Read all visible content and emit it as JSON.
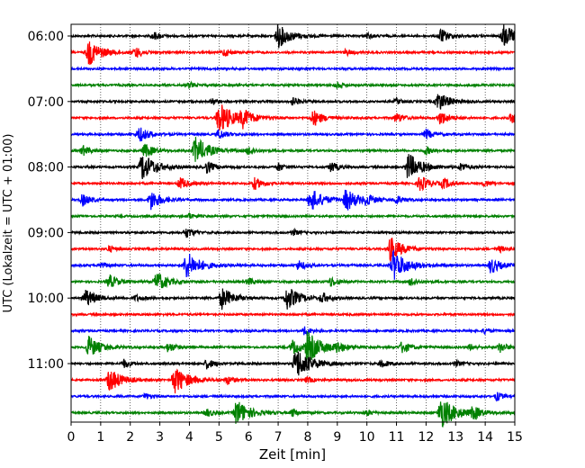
{
  "chart_data": {
    "type": "line",
    "title": "",
    "xlabel": "Zeit  [min]",
    "ylabel": "UTC (Lokalzeit = UTC + 01:00)",
    "xlim": [
      0,
      15
    ],
    "x_ticks": [
      0,
      1,
      2,
      3,
      4,
      5,
      6,
      7,
      8,
      9,
      10,
      11,
      12,
      13,
      14,
      15
    ],
    "y_ticks": [
      "06:00",
      "07:00",
      "08:00",
      "09:00",
      "10:00",
      "11:00"
    ],
    "grid": "vertical dotted",
    "row_interval_minutes": 15,
    "start_time": "06:00",
    "colors": [
      "#000000",
      "#ff0000",
      "#0000ff",
      "#008000"
    ],
    "rows": [
      {
        "label": "06:00",
        "color": "#000000",
        "bursts": [
          [
            7.0,
            1.2
          ],
          [
            14.6,
            1.2
          ],
          [
            12.5,
            0.7
          ],
          [
            2.8,
            0.4
          ],
          [
            10.0,
            0.3
          ]
        ]
      },
      {
        "label": "06:15",
        "color": "#ff0000",
        "bursts": [
          [
            0.6,
            1.3
          ],
          [
            2.2,
            0.5
          ],
          [
            5.2,
            0.4
          ],
          [
            9.3,
            0.3
          ]
        ]
      },
      {
        "label": "06:30",
        "color": "#0000ff",
        "bursts": []
      },
      {
        "label": "06:45",
        "color": "#008000",
        "bursts": [
          [
            4.0,
            0.3
          ],
          [
            9.0,
            0.3
          ]
        ]
      },
      {
        "label": "07:00",
        "color": "#000000",
        "bursts": [
          [
            12.4,
            1.0
          ],
          [
            7.5,
            0.4
          ],
          [
            4.8,
            0.3
          ],
          [
            11.0,
            0.3
          ]
        ]
      },
      {
        "label": "07:15",
        "color": "#ff0000",
        "bursts": [
          [
            5.0,
            1.6
          ],
          [
            5.8,
            0.8
          ],
          [
            8.2,
            0.8
          ],
          [
            11.0,
            0.5
          ],
          [
            12.5,
            0.7
          ],
          [
            14.9,
            0.5
          ]
        ]
      },
      {
        "label": "07:30",
        "color": "#0000ff",
        "bursts": [
          [
            2.3,
            0.8
          ],
          [
            5.0,
            0.5
          ],
          [
            12.0,
            0.5
          ]
        ]
      },
      {
        "label": "07:45",
        "color": "#008000",
        "bursts": [
          [
            4.2,
            1.4
          ],
          [
            2.5,
            0.7
          ],
          [
            0.4,
            0.5
          ],
          [
            6.0,
            0.4
          ],
          [
            12.0,
            0.4
          ]
        ]
      },
      {
        "label": "08:00",
        "color": "#000000",
        "bursts": [
          [
            2.4,
            1.4
          ],
          [
            11.4,
            1.4
          ],
          [
            4.6,
            0.6
          ],
          [
            7.0,
            0.4
          ],
          [
            8.8,
            0.5
          ],
          [
            13.2,
            0.4
          ]
        ]
      },
      {
        "label": "08:15",
        "color": "#ff0000",
        "bursts": [
          [
            3.7,
            0.6
          ],
          [
            6.2,
            0.6
          ],
          [
            11.8,
            0.8
          ],
          [
            12.6,
            0.5
          ],
          [
            14.0,
            0.3
          ]
        ]
      },
      {
        "label": "08:30",
        "color": "#0000ff",
        "bursts": [
          [
            2.7,
            1.0
          ],
          [
            8.1,
            1.2
          ],
          [
            9.3,
            1.1
          ],
          [
            0.4,
            0.6
          ],
          [
            10.0,
            0.5
          ],
          [
            11.0,
            0.4
          ]
        ]
      },
      {
        "label": "08:45",
        "color": "#008000",
        "bursts": [
          [
            4.0,
            0.3
          ]
        ]
      },
      {
        "label": "09:00",
        "color": "#000000",
        "bursts": [
          [
            3.9,
            0.5
          ],
          [
            7.5,
            0.3
          ]
        ]
      },
      {
        "label": "09:15",
        "color": "#ff0000",
        "bursts": [
          [
            10.8,
            1.2
          ],
          [
            1.3,
            0.3
          ],
          [
            14.5,
            0.3
          ]
        ]
      },
      {
        "label": "09:30",
        "color": "#0000ff",
        "bursts": [
          [
            3.9,
            1.4
          ],
          [
            10.9,
            1.5
          ],
          [
            14.2,
            0.8
          ],
          [
            7.7,
            0.5
          ],
          [
            1.0,
            0.3
          ]
        ]
      },
      {
        "label": "09:45",
        "color": "#008000",
        "bursts": [
          [
            2.9,
            1.0
          ],
          [
            1.3,
            0.7
          ],
          [
            8.8,
            0.5
          ],
          [
            11.5,
            0.4
          ],
          [
            6.0,
            0.4
          ]
        ]
      },
      {
        "label": "10:00",
        "color": "#000000",
        "bursts": [
          [
            0.5,
            0.9
          ],
          [
            5.1,
            1.1
          ],
          [
            7.3,
            1.2
          ],
          [
            2.2,
            0.3
          ],
          [
            8.5,
            0.5
          ]
        ]
      },
      {
        "label": "10:15",
        "color": "#ff0000",
        "bursts": []
      },
      {
        "label": "10:30",
        "color": "#0000ff",
        "bursts": [
          [
            7.9,
            0.4
          ],
          [
            14.0,
            0.3
          ]
        ]
      },
      {
        "label": "10:45",
        "color": "#008000",
        "bursts": [
          [
            0.6,
            1.1
          ],
          [
            8.0,
            1.5
          ],
          [
            7.5,
            0.7
          ],
          [
            11.2,
            0.6
          ],
          [
            9.0,
            0.5
          ],
          [
            3.3,
            0.5
          ],
          [
            14.5,
            0.5
          ],
          [
            13.5,
            0.3
          ]
        ]
      },
      {
        "label": "11:00",
        "color": "#000000",
        "bursts": [
          [
            7.6,
            1.6
          ],
          [
            1.8,
            0.4
          ],
          [
            4.6,
            0.5
          ],
          [
            10.5,
            0.4
          ],
          [
            13.0,
            0.3
          ]
        ]
      },
      {
        "label": "11:15",
        "color": "#ff0000",
        "bursts": [
          [
            1.3,
            1.2
          ],
          [
            3.5,
            1.4
          ],
          [
            5.3,
            0.4
          ],
          [
            8.0,
            0.3
          ]
        ]
      },
      {
        "label": "11:30",
        "color": "#0000ff",
        "bursts": [
          [
            14.4,
            0.4
          ],
          [
            2.5,
            0.3
          ]
        ]
      },
      {
        "label": "11:45",
        "color": "#008000",
        "bursts": [
          [
            5.6,
            1.3
          ],
          [
            12.5,
            1.6
          ],
          [
            4.6,
            0.4
          ],
          [
            7.5,
            0.4
          ],
          [
            13.6,
            0.6
          ],
          [
            10.0,
            0.3
          ]
        ]
      }
    ]
  }
}
